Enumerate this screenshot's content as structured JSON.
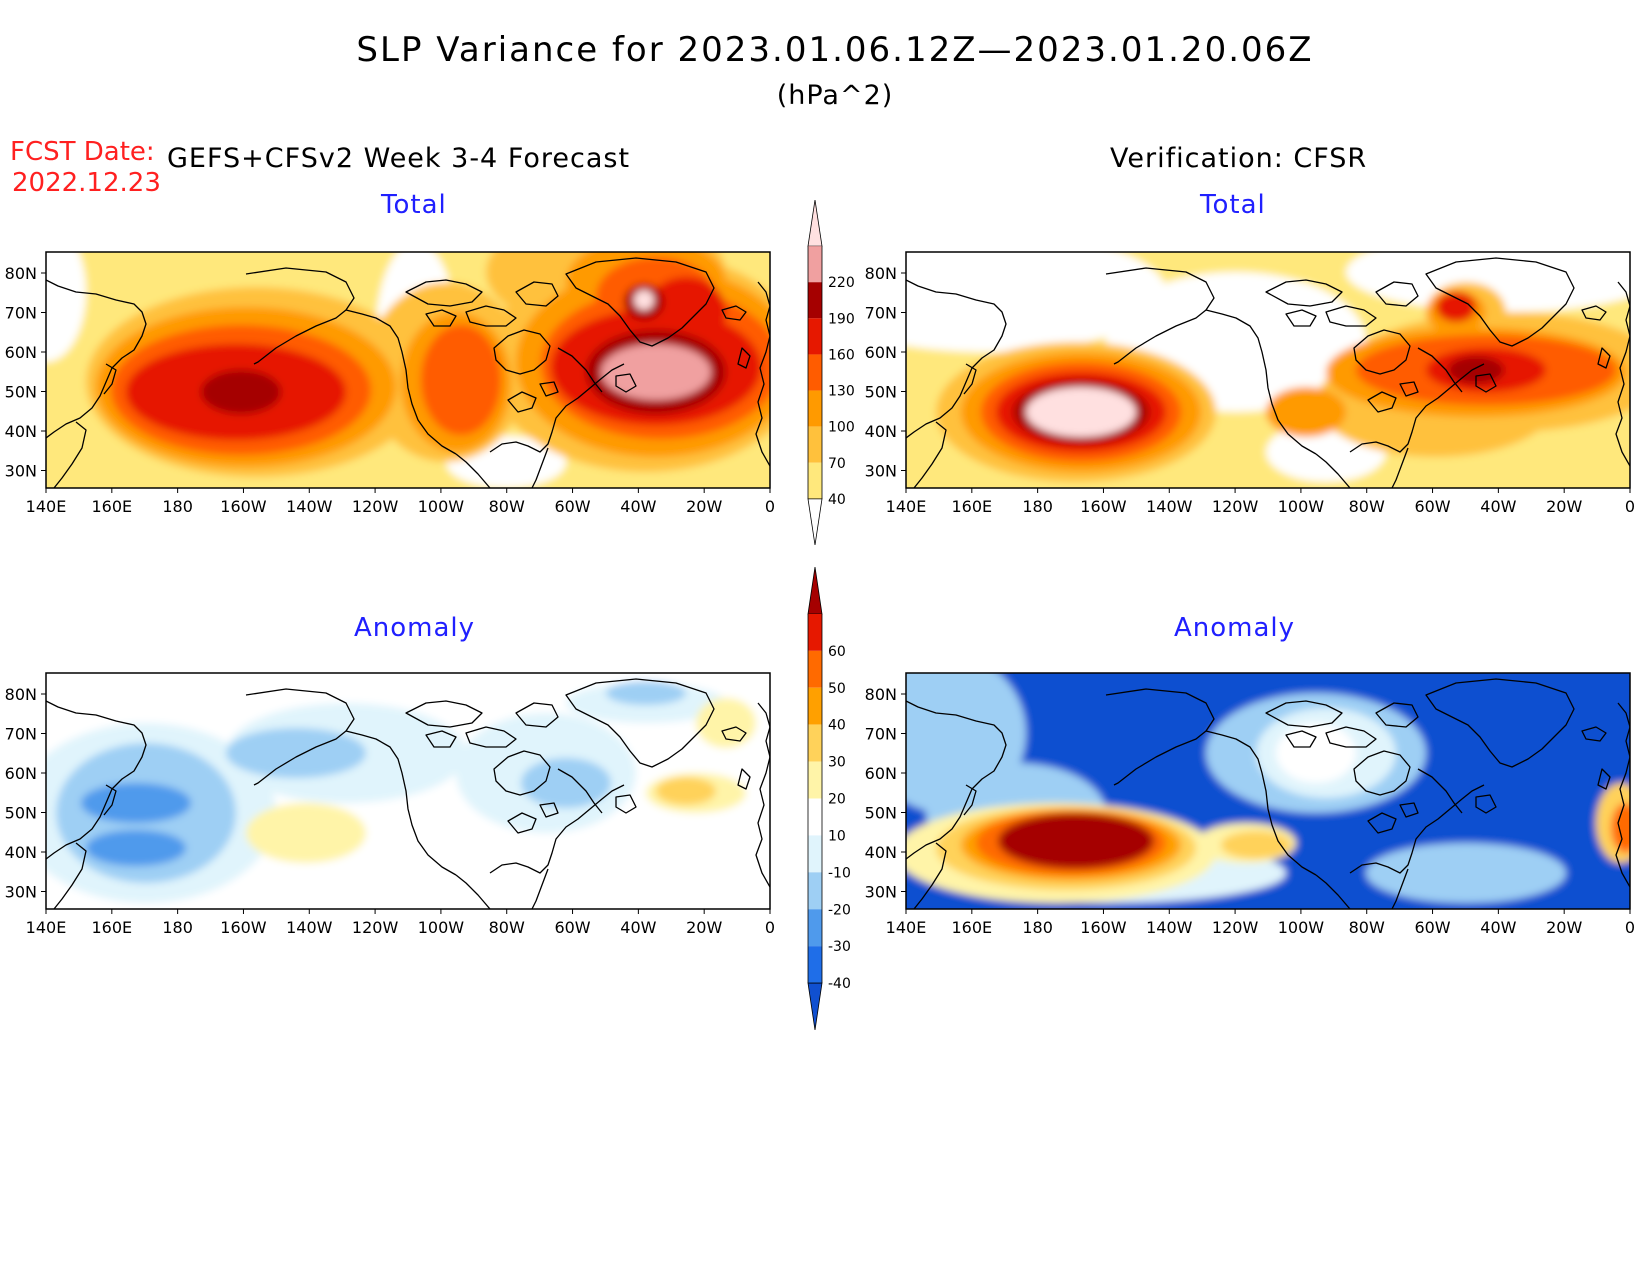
{
  "title": "SLP Variance for 2023.01.06.12Z—2023.01.20.06Z",
  "units": "(hPa^2)",
  "fcst_date_label": "FCST Date:",
  "fcst_date_value": "2022.12.23",
  "forecast_title": "GEFS+CFSv2 Week 3-4 Forecast",
  "verification_title": "Verification: CFSR",
  "panels": {
    "forecast_total_label": "Total",
    "verif_total_label": "Total",
    "forecast_anom_label": "Anomaly",
    "verif_anom_label": "Anomaly"
  },
  "lat_ticks": [
    "80N",
    "70N",
    "60N",
    "50N",
    "40N",
    "30N"
  ],
  "lon_ticks": [
    "140E",
    "160E",
    "180",
    "160W",
    "140W",
    "120W",
    "100W",
    "80W",
    "60W",
    "40W",
    "20W",
    "0"
  ],
  "total_colorbar": {
    "labels": [
      "40",
      "70",
      "100",
      "130",
      "160",
      "190",
      "220"
    ],
    "colors": [
      "#ffffff",
      "#ffe87c",
      "#ffc13c",
      "#ff9a00",
      "#ff5c00",
      "#e61800",
      "#a50000",
      "#f0a0a0",
      "#ffe0e0"
    ]
  },
  "anomaly_colorbar": {
    "labels": [
      "-40",
      "-30",
      "-20",
      "-10",
      "10",
      "20",
      "30",
      "40",
      "50",
      "60"
    ],
    "colors": [
      "#1050d0",
      "#1f6ee8",
      "#4f9aec",
      "#9ecff4",
      "#e0f4fc",
      "#ffffff",
      "#fff4a8",
      "#ffd25a",
      "#ffa000",
      "#ff6a00",
      "#e61800",
      "#a50000"
    ]
  }
}
